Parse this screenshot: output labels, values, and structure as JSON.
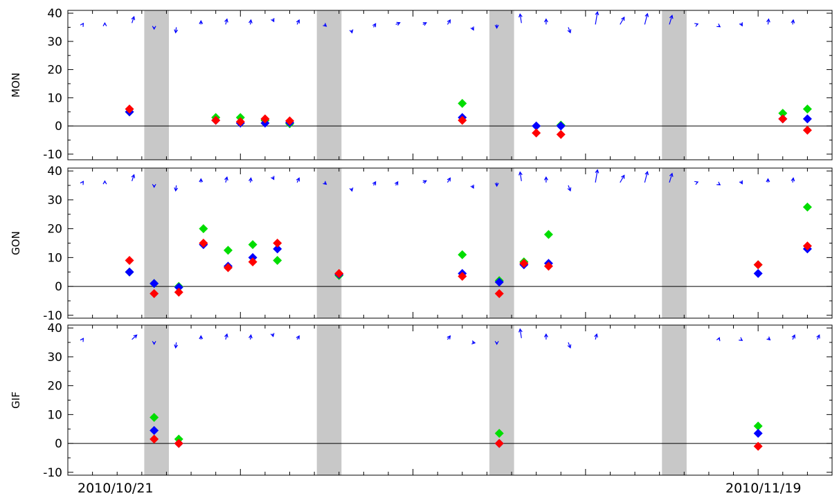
{
  "chart_data": {
    "type": "scatter",
    "x_axis": {
      "start_label": "2010/10/21",
      "end_label": "2010/11/19",
      "range_days": [
        0,
        31
      ],
      "minor_tick_step_days": 1,
      "major_tick_step_days": 7
    },
    "gray_bands_days": [
      [
        3.1,
        4.1
      ],
      [
        10.1,
        11.1
      ],
      [
        17.1,
        18.1
      ],
      [
        24.1,
        25.1
      ]
    ],
    "colors": {
      "green": "#00dd00",
      "blue": "#0000ff",
      "red": "#ff0000",
      "arrow": "#0000ff",
      "band": "#c8c8c8",
      "zero_line": "#000000"
    },
    "panels": [
      {
        "label": "MON",
        "ylim": [
          -12,
          41
        ],
        "yticks": [
          -10,
          0,
          10,
          20,
          30,
          40
        ],
        "points": [
          {
            "x": 2.5,
            "green": 5,
            "blue": 5,
            "red": 6
          },
          {
            "x": 6.0,
            "green": 3,
            "blue": 2,
            "red": 2
          },
          {
            "x": 7.0,
            "green": 3,
            "blue": 1,
            "red": 1.5
          },
          {
            "x": 8.0,
            "green": 2,
            "blue": 1,
            "red": 2.5
          },
          {
            "x": 9.0,
            "green": 0.8,
            "blue": 1.2,
            "red": 1.8
          },
          {
            "x": 16.0,
            "green": 8,
            "blue": 3,
            "red": 2
          },
          {
            "x": 19.0,
            "blue": 0,
            "red": -2.5
          },
          {
            "x": 20.0,
            "green": 0.3,
            "blue": 0,
            "red": -3
          },
          {
            "x": 29.0,
            "green": 4.5,
            "blue": 2.5,
            "red": 2.5
          },
          {
            "x": 30.0,
            "green": 6,
            "blue": 2.5,
            "red": -1.5
          }
        ],
        "arrows": [
          {
            "x": 0.6,
            "y": 36,
            "dx": 0.1,
            "dy": 0.6
          },
          {
            "x": 1.5,
            "y": 36,
            "dx": 0,
            "dy": 0.8
          },
          {
            "x": 2.6,
            "y": 36.5,
            "dx": 0.3,
            "dy": 3.5
          },
          {
            "x": 3.5,
            "y": 35,
            "dx": 0,
            "dy": -1
          },
          {
            "x": 4.4,
            "y": 35,
            "dx": -0.1,
            "dy": -3
          },
          {
            "x": 5.4,
            "y": 36,
            "dx": 0,
            "dy": 2
          },
          {
            "x": 6.4,
            "y": 36,
            "dx": 0.2,
            "dy": 3
          },
          {
            "x": 7.4,
            "y": 36,
            "dx": 0.1,
            "dy": 2.5
          },
          {
            "x": 8.3,
            "y": 38,
            "dx": 0.2,
            "dy": -1.5
          },
          {
            "x": 9.3,
            "y": 36,
            "dx": 0.3,
            "dy": 2.5
          },
          {
            "x": 10.4,
            "y": 36,
            "dx": 0.3,
            "dy": -1
          },
          {
            "x": 11.5,
            "y": 34,
            "dx": 0.1,
            "dy": -1.5
          },
          {
            "x": 12.4,
            "y": 35,
            "dx": 0.3,
            "dy": 2
          },
          {
            "x": 13.3,
            "y": 36,
            "dx": 0.6,
            "dy": 1
          },
          {
            "x": 14.4,
            "y": 36,
            "dx": 0.5,
            "dy": 1
          },
          {
            "x": 15.4,
            "y": 36,
            "dx": 0.4,
            "dy": 2.5
          },
          {
            "x": 16.4,
            "y": 35,
            "dx": 0.2,
            "dy": -1.5
          },
          {
            "x": 17.4,
            "y": 36,
            "dx": 0,
            "dy": -2
          },
          {
            "x": 18.4,
            "y": 36.5,
            "dx": -0.2,
            "dy": 5
          },
          {
            "x": 19.4,
            "y": 36,
            "dx": 0,
            "dy": 3
          },
          {
            "x": 20.3,
            "y": 35,
            "dx": 0.3,
            "dy": -3
          },
          {
            "x": 21.4,
            "y": 36,
            "dx": 0.3,
            "dy": 7
          },
          {
            "x": 22.4,
            "y": 36,
            "dx": 0.6,
            "dy": 4
          },
          {
            "x": 23.4,
            "y": 36,
            "dx": 0.4,
            "dy": 6
          },
          {
            "x": 24.4,
            "y": 36,
            "dx": 0.4,
            "dy": 5
          },
          {
            "x": 25.5,
            "y": 36,
            "dx": 0.2,
            "dy": 0.3
          },
          {
            "x": 26.4,
            "y": 35.5,
            "dx": 0.2,
            "dy": -0.5
          },
          {
            "x": 27.3,
            "y": 36.5,
            "dx": 0.2,
            "dy": -1.5
          },
          {
            "x": 28.4,
            "y": 36,
            "dx": 0.1,
            "dy": 3
          },
          {
            "x": 29.4,
            "y": 36,
            "dx": 0.1,
            "dy": 2.5
          }
        ]
      },
      {
        "label": "GON",
        "ylim": [
          -11,
          41
        ],
        "yticks": [
          -10,
          0,
          10,
          20,
          30,
          40
        ],
        "points": [
          {
            "x": 2.5,
            "green": 5,
            "blue": 5,
            "red": 9
          },
          {
            "x": 3.5,
            "green": 1,
            "blue": 1,
            "red": -2.5
          },
          {
            "x": 4.5,
            "green": 0,
            "blue": -0.3,
            "red": -2
          },
          {
            "x": 5.5,
            "green": 20,
            "blue": 14.5,
            "red": 15
          },
          {
            "x": 6.5,
            "green": 12.5,
            "blue": 7,
            "red": 6.5
          },
          {
            "x": 7.5,
            "green": 14.5,
            "blue": 10,
            "red": 8.5
          },
          {
            "x": 8.5,
            "green": 9,
            "blue": 13,
            "red": 15
          },
          {
            "x": 11.0,
            "green": 3.8,
            "blue": 4.2,
            "red": 4.5
          },
          {
            "x": 16.0,
            "green": 11,
            "blue": 4.5,
            "red": 3.5
          },
          {
            "x": 17.5,
            "green": 2,
            "blue": 1.5,
            "red": -2.5
          },
          {
            "x": 18.5,
            "green": 8.5,
            "blue": 7.5,
            "red": 8
          },
          {
            "x": 19.5,
            "green": 18,
            "blue": 8,
            "red": 7
          },
          {
            "x": 28.0,
            "green": 7.5,
            "blue": 4.5,
            "red": 7.5
          },
          {
            "x": 30.0,
            "green": 27.5,
            "blue": 13,
            "red": 14
          }
        ],
        "arrows": [
          {
            "x": 0.6,
            "y": 36,
            "dx": 0.1,
            "dy": 0.6
          },
          {
            "x": 1.5,
            "y": 36,
            "dx": 0,
            "dy": 0.8
          },
          {
            "x": 2.6,
            "y": 36.5,
            "dx": 0.3,
            "dy": 3.5
          },
          {
            "x": 3.5,
            "y": 35,
            "dx": 0,
            "dy": -1
          },
          {
            "x": 4.4,
            "y": 35,
            "dx": -0.1,
            "dy": -3
          },
          {
            "x": 5.4,
            "y": 36,
            "dx": 0,
            "dy": 2
          },
          {
            "x": 6.4,
            "y": 36,
            "dx": 0.2,
            "dy": 3
          },
          {
            "x": 7.4,
            "y": 36,
            "dx": 0.1,
            "dy": 2.5
          },
          {
            "x": 8.3,
            "y": 38,
            "dx": 0.2,
            "dy": -1.5
          },
          {
            "x": 9.3,
            "y": 36,
            "dx": 0.3,
            "dy": 2.5
          },
          {
            "x": 10.4,
            "y": 36,
            "dx": 0.3,
            "dy": -1
          },
          {
            "x": 11.5,
            "y": 34,
            "dx": 0.1,
            "dy": -1.5
          },
          {
            "x": 12.4,
            "y": 35,
            "dx": 0.3,
            "dy": 2
          },
          {
            "x": 13.3,
            "y": 35,
            "dx": 0.3,
            "dy": 2
          },
          {
            "x": 14.4,
            "y": 36,
            "dx": 0.5,
            "dy": 1
          },
          {
            "x": 15.4,
            "y": 36,
            "dx": 0.4,
            "dy": 2.5
          },
          {
            "x": 16.4,
            "y": 35,
            "dx": 0.2,
            "dy": -1.5
          },
          {
            "x": 17.4,
            "y": 36,
            "dx": 0,
            "dy": -2
          },
          {
            "x": 18.4,
            "y": 36.5,
            "dx": -0.2,
            "dy": 5
          },
          {
            "x": 19.4,
            "y": 36,
            "dx": 0,
            "dy": 3
          },
          {
            "x": 20.3,
            "y": 35,
            "dx": 0.3,
            "dy": -3
          },
          {
            "x": 21.4,
            "y": 36,
            "dx": 0.3,
            "dy": 7
          },
          {
            "x": 22.4,
            "y": 36,
            "dx": 0.6,
            "dy": 4
          },
          {
            "x": 23.4,
            "y": 36,
            "dx": 0.4,
            "dy": 6
          },
          {
            "x": 24.4,
            "y": 36,
            "dx": 0.4,
            "dy": 5
          },
          {
            "x": 25.5,
            "y": 36,
            "dx": 0.2,
            "dy": 0.3
          },
          {
            "x": 26.4,
            "y": 35.5,
            "dx": 0.2,
            "dy": -0.5
          },
          {
            "x": 27.3,
            "y": 36.5,
            "dx": 0.2,
            "dy": -1.5
          },
          {
            "x": 28.4,
            "y": 36,
            "dx": 0,
            "dy": 2
          },
          {
            "x": 29.4,
            "y": 36,
            "dx": 0.1,
            "dy": 2.5
          }
        ]
      },
      {
        "label": "GIF",
        "ylim": [
          -11,
          41
        ],
        "yticks": [
          -10,
          0,
          10,
          20,
          30,
          40
        ],
        "points": [
          {
            "x": 3.5,
            "green": 9,
            "blue": 4.5,
            "red": 1.5
          },
          {
            "x": 4.5,
            "green": 1.5,
            "blue": 0,
            "red": 0
          },
          {
            "x": 17.5,
            "green": 3.5,
            "blue": 0,
            "red": 0
          },
          {
            "x": 28.0,
            "green": 6,
            "blue": 3.5,
            "red": -1
          }
        ],
        "arrows": [
          {
            "x": 0.6,
            "y": 36,
            "dx": 0.1,
            "dy": 0.6
          },
          {
            "x": 2.6,
            "y": 36,
            "dx": 0.7,
            "dy": 2.5
          },
          {
            "x": 3.5,
            "y": 35,
            "dx": 0,
            "dy": -1
          },
          {
            "x": 4.4,
            "y": 35,
            "dx": -0.1,
            "dy": -3
          },
          {
            "x": 5.4,
            "y": 36,
            "dx": 0,
            "dy": 2
          },
          {
            "x": 6.4,
            "y": 36,
            "dx": 0.2,
            "dy": 3
          },
          {
            "x": 7.4,
            "y": 36,
            "dx": 0.1,
            "dy": 2.5
          },
          {
            "x": 8.3,
            "y": 38,
            "dx": 0.1,
            "dy": -1.5
          },
          {
            "x": 9.3,
            "y": 36,
            "dx": 0.3,
            "dy": 2
          },
          {
            "x": 15.4,
            "y": 36,
            "dx": 0.4,
            "dy": 2
          },
          {
            "x": 16.4,
            "y": 35,
            "dx": 0.4,
            "dy": -0.3
          },
          {
            "x": 17.4,
            "y": 35,
            "dx": 0,
            "dy": -1
          },
          {
            "x": 18.4,
            "y": 36.5,
            "dx": -0.2,
            "dy": 5
          },
          {
            "x": 19.4,
            "y": 36,
            "dx": 0,
            "dy": 3
          },
          {
            "x": 20.3,
            "y": 35,
            "dx": 0.3,
            "dy": -3
          },
          {
            "x": 21.4,
            "y": 36,
            "dx": 0.2,
            "dy": 3
          },
          {
            "x": 26.4,
            "y": 36,
            "dx": 0.1,
            "dy": 1
          },
          {
            "x": 27.3,
            "y": 36,
            "dx": 0.2,
            "dy": -0.5
          },
          {
            "x": 28.4,
            "y": 36.5,
            "dx": 0.3,
            "dy": -1
          },
          {
            "x": 29.4,
            "y": 36,
            "dx": 0.3,
            "dy": 2.5
          },
          {
            "x": 30.4,
            "y": 36,
            "dx": 0.3,
            "dy": 2.5
          }
        ]
      }
    ]
  }
}
